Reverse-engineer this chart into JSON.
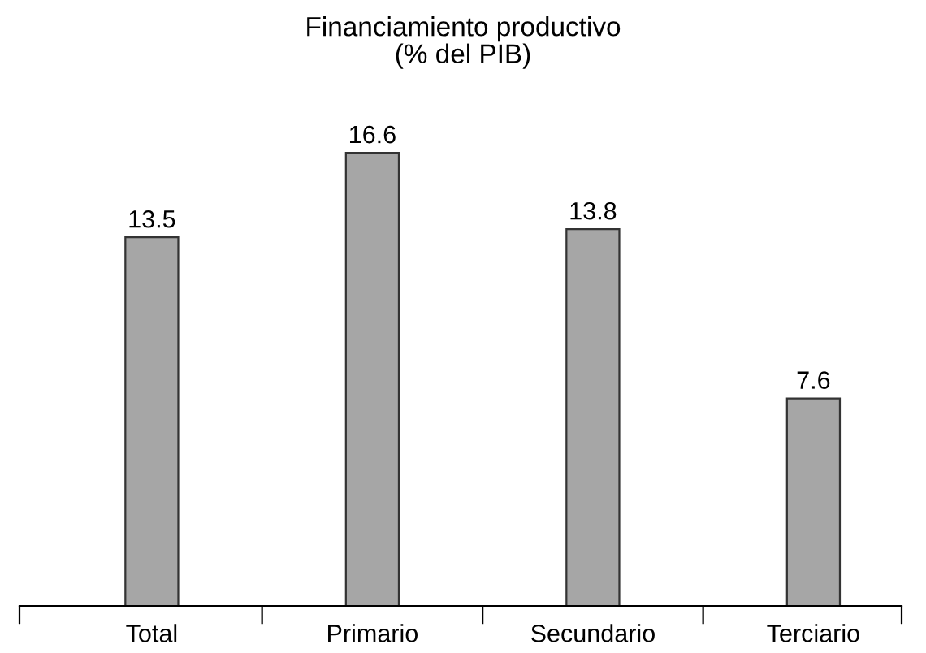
{
  "chart_data": {
    "type": "bar",
    "title": "Financiamiento productivo\n(% del PIB)",
    "categories": [
      "Total",
      "Primario",
      "Secundario",
      "Terciario"
    ],
    "values": [
      13.5,
      16.6,
      13.8,
      7.6
    ],
    "color": "#a6a6a6",
    "data_labels": true,
    "grid": false,
    "legend": false
  }
}
